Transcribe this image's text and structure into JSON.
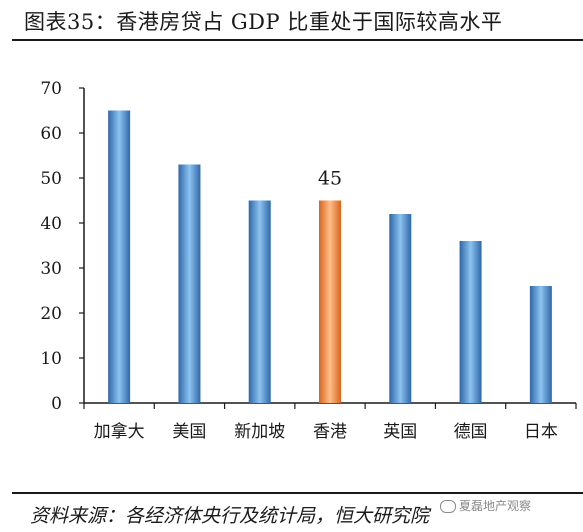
{
  "header": {
    "title": "图表35：香港房贷占 GDP 比重处于国际较高水平"
  },
  "footer": {
    "source": "资料来源：各经济体央行及统计局，恒大研究院",
    "watermark": "夏磊地产观察"
  },
  "colors": {
    "bar_blue_dark": "#2f67a8",
    "bar_blue_light": "#8cc3f0",
    "bar_orange_dark": "#d8641c",
    "bar_orange_light": "#ffbf8a",
    "axis": "#1a1a1a"
  },
  "chart_data": {
    "type": "bar",
    "title": "图表35：香港房贷占 GDP 比重处于国际较高水平",
    "xlabel": "",
    "ylabel": "",
    "categories": [
      "加拿大",
      "美国",
      "新加坡",
      "香港",
      "英国",
      "德国",
      "日本"
    ],
    "values": [
      65,
      53,
      45,
      45,
      42,
      36,
      26
    ],
    "highlight_index": 3,
    "data_labels": [
      {
        "index": 3,
        "text": "45"
      }
    ],
    "ylim": [
      0,
      70
    ],
    "yticks": [
      0,
      10,
      20,
      30,
      40,
      50,
      60,
      70
    ],
    "grid": false,
    "legend": "none"
  }
}
